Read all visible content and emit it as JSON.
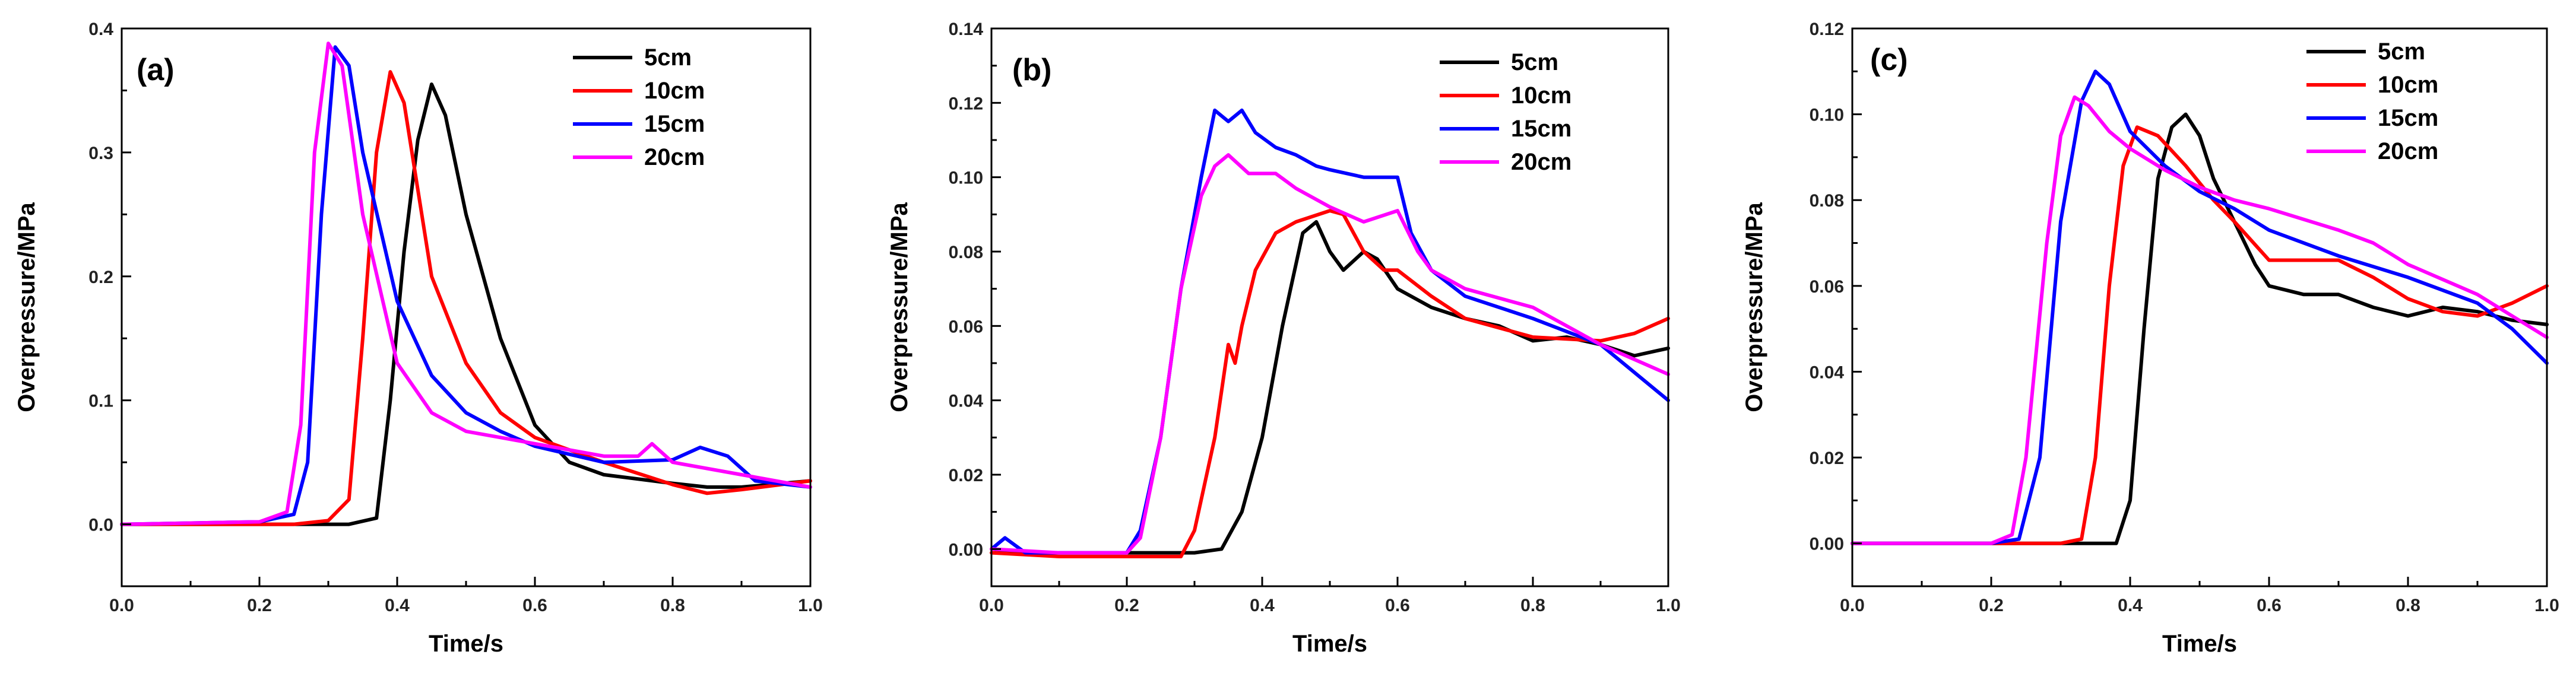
{
  "chart_data": [
    {
      "type": "line",
      "panel_label": "(a)",
      "xlabel": "Time/s",
      "ylabel": "Overpressure/MPa",
      "xlim": [
        0.0,
        1.0
      ],
      "ylim": [
        -0.05,
        0.4
      ],
      "xticks": [
        "0.0",
        "0.2",
        "0.4",
        "0.6",
        "0.8",
        "1.0"
      ],
      "yticks": [
        "0.0",
        "0.1",
        "0.2",
        "0.3",
        "0.4"
      ],
      "legend_position": "top-right",
      "series": [
        {
          "name": "5cm",
          "color": "#000000",
          "x": [
            0.0,
            0.25,
            0.33,
            0.37,
            0.39,
            0.41,
            0.43,
            0.45,
            0.47,
            0.5,
            0.55,
            0.6,
            0.65,
            0.7,
            0.8,
            0.85,
            0.9,
            1.0
          ],
          "y": [
            0.0,
            0.0,
            0.0,
            0.005,
            0.1,
            0.22,
            0.31,
            0.355,
            0.33,
            0.25,
            0.15,
            0.08,
            0.05,
            0.04,
            0.033,
            0.03,
            0.03,
            0.035
          ]
        },
        {
          "name": "10cm",
          "color": "#ff0000",
          "x": [
            0.0,
            0.25,
            0.3,
            0.33,
            0.35,
            0.37,
            0.39,
            0.41,
            0.45,
            0.5,
            0.55,
            0.6,
            0.7,
            0.8,
            0.85,
            0.9,
            1.0
          ],
          "y": [
            0.0,
            0.0,
            0.003,
            0.02,
            0.15,
            0.3,
            0.365,
            0.34,
            0.2,
            0.13,
            0.09,
            0.07,
            0.05,
            0.032,
            0.025,
            0.028,
            0.035
          ]
        },
        {
          "name": "15cm",
          "color": "#0000ff",
          "x": [
            0.0,
            0.2,
            0.25,
            0.27,
            0.29,
            0.31,
            0.33,
            0.35,
            0.4,
            0.45,
            0.5,
            0.55,
            0.6,
            0.7,
            0.8,
            0.84,
            0.88,
            0.92,
            1.0
          ],
          "y": [
            0.0,
            0.002,
            0.008,
            0.05,
            0.25,
            0.385,
            0.37,
            0.3,
            0.18,
            0.12,
            0.09,
            0.075,
            0.063,
            0.05,
            0.052,
            0.062,
            0.055,
            0.035,
            0.03
          ]
        },
        {
          "name": "20cm",
          "color": "#ff00ff",
          "x": [
            0.0,
            0.2,
            0.24,
            0.26,
            0.28,
            0.3,
            0.32,
            0.35,
            0.4,
            0.45,
            0.5,
            0.55,
            0.6,
            0.7,
            0.75,
            0.77,
            0.8,
            0.9,
            1.0
          ],
          "y": [
            0.0,
            0.002,
            0.01,
            0.08,
            0.3,
            0.388,
            0.37,
            0.25,
            0.13,
            0.09,
            0.075,
            0.07,
            0.065,
            0.055,
            0.055,
            0.065,
            0.05,
            0.04,
            0.03
          ]
        }
      ]
    },
    {
      "type": "line",
      "panel_label": "(b)",
      "xlabel": "Time/s",
      "ylabel": "Overpressure/MPa",
      "xlim": [
        0.0,
        1.0
      ],
      "ylim": [
        -0.01,
        0.14
      ],
      "xticks": [
        "0.0",
        "0.2",
        "0.4",
        "0.6",
        "0.8",
        "1.0"
      ],
      "yticks": [
        "0.00",
        "0.02",
        "0.04",
        "0.06",
        "0.08",
        "0.10",
        "0.12",
        "0.14"
      ],
      "legend_position": "top-right",
      "series": [
        {
          "name": "5cm",
          "color": "#000000",
          "x": [
            0.0,
            0.05,
            0.1,
            0.2,
            0.3,
            0.34,
            0.37,
            0.4,
            0.43,
            0.46,
            0.48,
            0.5,
            0.52,
            0.55,
            0.57,
            0.6,
            0.65,
            0.7,
            0.75,
            0.8,
            0.85,
            0.9,
            0.95,
            1.0
          ],
          "y": [
            0.0,
            -0.001,
            -0.001,
            -0.001,
            -0.001,
            0.0,
            0.01,
            0.03,
            0.06,
            0.085,
            0.088,
            0.08,
            0.075,
            0.08,
            0.078,
            0.07,
            0.065,
            0.062,
            0.06,
            0.056,
            0.057,
            0.055,
            0.052,
            0.054
          ]
        },
        {
          "name": "10cm",
          "color": "#ff0000",
          "x": [
            0.0,
            0.1,
            0.2,
            0.28,
            0.3,
            0.33,
            0.35,
            0.36,
            0.37,
            0.39,
            0.42,
            0.45,
            0.5,
            0.52,
            0.55,
            0.58,
            0.6,
            0.65,
            0.7,
            0.8,
            0.9,
            0.95,
            1.0
          ],
          "y": [
            -0.001,
            -0.002,
            -0.002,
            -0.002,
            0.005,
            0.03,
            0.055,
            0.05,
            0.06,
            0.075,
            0.085,
            0.088,
            0.091,
            0.09,
            0.08,
            0.075,
            0.075,
            0.068,
            0.062,
            0.057,
            0.056,
            0.058,
            0.062
          ]
        },
        {
          "name": "15cm",
          "color": "#0000ff",
          "x": [
            0.0,
            0.02,
            0.05,
            0.1,
            0.2,
            0.22,
            0.25,
            0.28,
            0.31,
            0.33,
            0.35,
            0.37,
            0.39,
            0.42,
            0.45,
            0.48,
            0.5,
            0.55,
            0.6,
            0.62,
            0.65,
            0.7,
            0.8,
            0.9,
            1.0
          ],
          "y": [
            0.0,
            0.003,
            -0.001,
            -0.001,
            -0.001,
            0.005,
            0.03,
            0.07,
            0.1,
            0.118,
            0.115,
            0.118,
            0.112,
            0.108,
            0.106,
            0.103,
            0.102,
            0.1,
            0.1,
            0.085,
            0.075,
            0.068,
            0.062,
            0.055,
            0.04
          ]
        },
        {
          "name": "20cm",
          "color": "#ff00ff",
          "x": [
            0.0,
            0.1,
            0.2,
            0.22,
            0.25,
            0.28,
            0.31,
            0.33,
            0.35,
            0.38,
            0.42,
            0.45,
            0.5,
            0.55,
            0.6,
            0.63,
            0.65,
            0.7,
            0.8,
            0.9,
            1.0
          ],
          "y": [
            0.0,
            -0.001,
            -0.001,
            0.003,
            0.03,
            0.07,
            0.095,
            0.103,
            0.106,
            0.101,
            0.101,
            0.097,
            0.092,
            0.088,
            0.091,
            0.08,
            0.075,
            0.07,
            0.065,
            0.055,
            0.047
          ]
        }
      ]
    },
    {
      "type": "line",
      "panel_label": "(c)",
      "xlabel": "Time/s",
      "ylabel": "Overpressure/MPa",
      "xlim": [
        0.0,
        1.0
      ],
      "ylim": [
        -0.01,
        0.12
      ],
      "xticks": [
        "0.0",
        "0.2",
        "0.4",
        "0.6",
        "0.8",
        "1.0"
      ],
      "yticks": [
        "0.00",
        "0.02",
        "0.04",
        "0.06",
        "0.08",
        "0.10",
        "0.12"
      ],
      "legend_position": "top-right",
      "series": [
        {
          "name": "5cm",
          "color": "#000000",
          "x": [
            0.0,
            0.3,
            0.38,
            0.4,
            0.42,
            0.44,
            0.46,
            0.48,
            0.5,
            0.52,
            0.55,
            0.58,
            0.6,
            0.65,
            0.7,
            0.75,
            0.8,
            0.85,
            0.9,
            0.95,
            1.0
          ],
          "y": [
            0.0,
            0.0,
            0.0,
            0.01,
            0.05,
            0.085,
            0.097,
            0.1,
            0.095,
            0.085,
            0.075,
            0.065,
            0.06,
            0.058,
            0.058,
            0.055,
            0.053,
            0.055,
            0.054,
            0.052,
            0.051
          ]
        },
        {
          "name": "10cm",
          "color": "#ff0000",
          "x": [
            0.0,
            0.3,
            0.33,
            0.35,
            0.37,
            0.39,
            0.41,
            0.44,
            0.48,
            0.52,
            0.55,
            0.6,
            0.65,
            0.7,
            0.75,
            0.8,
            0.85,
            0.9,
            0.95,
            1.0
          ],
          "y": [
            0.0,
            0.0,
            0.001,
            0.02,
            0.06,
            0.088,
            0.097,
            0.095,
            0.088,
            0.08,
            0.075,
            0.066,
            0.066,
            0.066,
            0.062,
            0.057,
            0.054,
            0.053,
            0.056,
            0.06
          ]
        },
        {
          "name": "15cm",
          "color": "#0000ff",
          "x": [
            0.0,
            0.2,
            0.24,
            0.27,
            0.3,
            0.33,
            0.35,
            0.37,
            0.4,
            0.45,
            0.5,
            0.55,
            0.6,
            0.7,
            0.8,
            0.9,
            0.95,
            1.0
          ],
          "y": [
            0.0,
            0.0,
            0.001,
            0.02,
            0.075,
            0.103,
            0.11,
            0.107,
            0.096,
            0.088,
            0.082,
            0.078,
            0.073,
            0.067,
            0.062,
            0.056,
            0.05,
            0.042
          ]
        },
        {
          "name": "20cm",
          "color": "#ff00ff",
          "x": [
            0.0,
            0.2,
            0.23,
            0.25,
            0.28,
            0.3,
            0.32,
            0.34,
            0.37,
            0.4,
            0.45,
            0.5,
            0.55,
            0.6,
            0.7,
            0.75,
            0.8,
            0.9,
            0.95,
            1.0
          ],
          "y": [
            0.0,
            0.0,
            0.002,
            0.02,
            0.07,
            0.095,
            0.104,
            0.102,
            0.096,
            0.092,
            0.087,
            0.083,
            0.08,
            0.078,
            0.073,
            0.07,
            0.065,
            0.058,
            0.053,
            0.048
          ]
        }
      ]
    }
  ]
}
